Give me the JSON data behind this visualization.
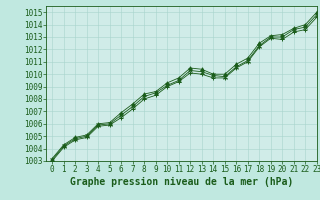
{
  "title": "Graphe pression niveau de la mer (hPa)",
  "xlim": [
    -0.5,
    23
  ],
  "ylim": [
    1003,
    1015.5
  ],
  "yticks": [
    1003,
    1004,
    1005,
    1006,
    1007,
    1008,
    1009,
    1010,
    1011,
    1012,
    1013,
    1014,
    1015
  ],
  "xticks": [
    0,
    1,
    2,
    3,
    4,
    5,
    6,
    7,
    8,
    9,
    10,
    11,
    12,
    13,
    14,
    15,
    16,
    17,
    18,
    19,
    20,
    21,
    22,
    23
  ],
  "background_color": "#c0e8e0",
  "grid_color": "#a8d4cc",
  "line_color": "#1a5c1a",
  "marker_color": "#1a5c1a",
  "axes_facecolor": "#d0ece8",
  "series": [
    {
      "x": [
        0,
        1,
        2,
        3,
        4,
        5,
        6,
        7,
        8,
        9,
        10,
        11,
        12,
        13,
        14,
        15,
        16,
        17,
        18,
        19,
        20,
        21,
        22,
        23
      ],
      "y": [
        1003.2,
        1004.3,
        1004.9,
        1005.1,
        1006.0,
        1006.1,
        1006.9,
        1007.6,
        1008.4,
        1008.6,
        1009.3,
        1009.7,
        1010.5,
        1010.4,
        1010.0,
        1010.0,
        1010.8,
        1011.3,
        1012.5,
        1013.1,
        1013.2,
        1013.7,
        1014.0,
        1015.0
      ]
    },
    {
      "x": [
        0,
        1,
        2,
        3,
        4,
        5,
        6,
        7,
        8,
        9,
        10,
        11,
        12,
        13,
        14,
        15,
        16,
        17,
        18,
        19,
        20,
        21,
        22,
        23
      ],
      "y": [
        1003.1,
        1004.2,
        1004.8,
        1005.0,
        1005.9,
        1006.0,
        1006.7,
        1007.4,
        1008.2,
        1008.5,
        1009.1,
        1009.5,
        1010.3,
        1010.2,
        1009.9,
        1009.8,
        1010.6,
        1011.1,
        1012.3,
        1013.0,
        1013.0,
        1013.6,
        1013.8,
        1014.8
      ]
    },
    {
      "x": [
        0,
        1,
        2,
        3,
        4,
        5,
        6,
        7,
        8,
        9,
        10,
        11,
        12,
        13,
        14,
        15,
        16,
        17,
        18,
        19,
        20,
        21,
        22,
        23
      ],
      "y": [
        1003.0,
        1004.1,
        1004.7,
        1004.9,
        1005.8,
        1005.9,
        1006.5,
        1007.2,
        1008.0,
        1008.3,
        1009.0,
        1009.4,
        1010.1,
        1010.0,
        1009.7,
        1009.7,
        1010.5,
        1011.0,
        1012.2,
        1012.9,
        1012.8,
        1013.4,
        1013.6,
        1014.6
      ]
    }
  ],
  "title_fontsize": 7,
  "tick_fontsize": 5.5,
  "title_color": "#1a5c1a",
  "tick_color": "#1a5c1a",
  "border_color": "#1a5c1a"
}
